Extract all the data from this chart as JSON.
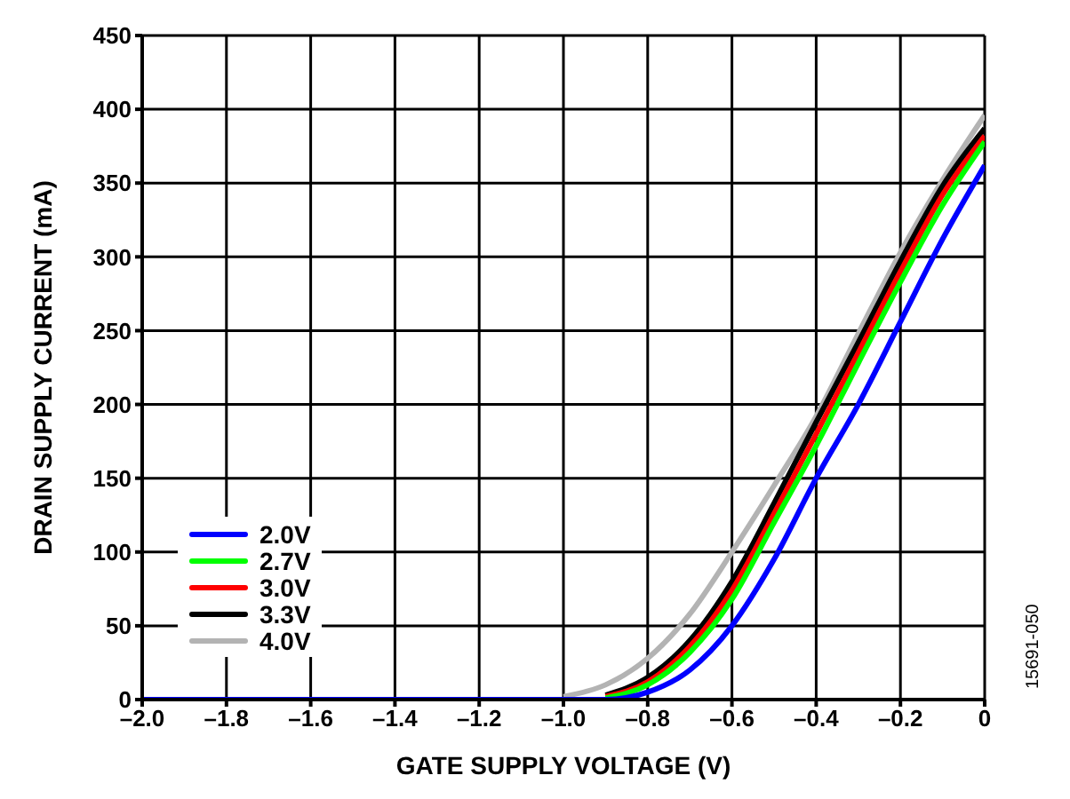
{
  "chart_data": {
    "type": "line",
    "xlabel": "GATE SUPPLY VOLTAGE (V)",
    "ylabel": "DRAIN SUPPLY CURRENT (mA)",
    "annotations": [
      "15691-050"
    ],
    "x": [
      -2.0,
      -1.2,
      -1.0,
      -0.9,
      -0.8,
      -0.7,
      -0.6,
      -0.5,
      -0.4,
      -0.3,
      -0.2,
      -0.1,
      0
    ],
    "series": [
      {
        "name": "2.0V",
        "color": "#0000ff",
        "values": [
          0,
          0,
          0,
          0,
          5,
          20,
          50,
          95,
          150,
          200,
          256,
          312,
          362
        ]
      },
      {
        "name": "2.7V",
        "color": "#00ff00",
        "values": [
          null,
          null,
          null,
          1,
          10,
          32,
          68,
          120,
          172,
          228,
          283,
          335,
          378
        ]
      },
      {
        "name": "3.0V",
        "color": "#ff0000",
        "values": [
          null,
          null,
          null,
          2,
          12,
          36,
          74,
          126,
          180,
          235,
          290,
          342,
          382
        ]
      },
      {
        "name": "3.3V",
        "color": "#000000",
        "values": [
          null,
          null,
          null,
          3,
          15,
          40,
          80,
          133,
          188,
          242,
          297,
          348,
          387
        ]
      },
      {
        "name": "4.0V",
        "color": "#b3b3b3",
        "values": [
          null,
          null,
          2,
          10,
          28,
          58,
          100,
          145,
          192,
          248,
          303,
          352,
          396
        ]
      }
    ],
    "xlim": [
      -2.0,
      0
    ],
    "xticks": [
      {
        "value": -2,
        "label": "–2.0"
      },
      {
        "value": -1.8,
        "label": "–1.8"
      },
      {
        "value": -1.6,
        "label": "–1.6"
      },
      {
        "value": -1.4,
        "label": "–1.4"
      },
      {
        "value": -1.2,
        "label": "–1.2"
      },
      {
        "value": -1,
        "label": "–1.0"
      },
      {
        "value": -0.8,
        "label": "–0.8"
      },
      {
        "value": -0.6,
        "label": "–0.6"
      },
      {
        "value": -0.4,
        "label": "–0.4"
      },
      {
        "value": -0.2,
        "label": "–0.2"
      },
      0
    ],
    "ylim": [
      0,
      450
    ],
    "yticks": [
      0,
      50,
      100,
      150,
      200,
      250,
      300,
      350,
      400,
      450
    ],
    "grid": true,
    "legend": "bottom left",
    "marker": "none",
    "line_style": "solid"
  }
}
